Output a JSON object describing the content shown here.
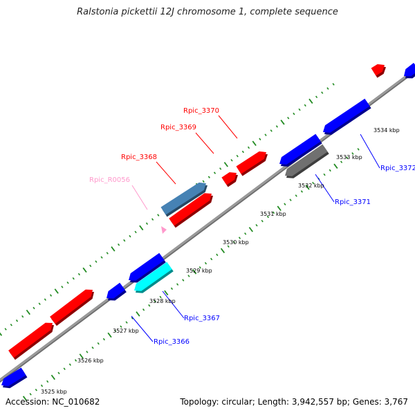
{
  "title": "Ralstonia pickettii 12J chromosome 1, complete sequence",
  "footer": {
    "accession": "Accession: NC_010682",
    "summary": "Topology: circular; Length: 3,942,557 bp; Genes: 3,767"
  },
  "colors": {
    "forward_gene": "#ff0000",
    "reverse_gene": "#0000ff",
    "rna_gene": "#4682b4",
    "pseudo_gene": "#707070",
    "cyan_gene": "#00ffff",
    "trna_marker": "#ff99cc",
    "backbone": "#9a9a9a",
    "tick": "#228b22"
  },
  "ticks": [
    {
      "label": "3525 kbp"
    },
    {
      "label": "3526 kbp"
    },
    {
      "label": "3527 kbp"
    },
    {
      "label": "3528 kbp"
    },
    {
      "label": "3529 kbp"
    },
    {
      "label": "3530 kbp"
    },
    {
      "label": "3531 kbp"
    },
    {
      "label": "3532 kbp"
    },
    {
      "label": "3533 kbp"
    },
    {
      "label": "3534 kbp"
    }
  ],
  "gene_labels": [
    {
      "name": "Rpic_3370",
      "color": "#ff0000"
    },
    {
      "name": "Rpic_3369",
      "color": "#ff0000"
    },
    {
      "name": "Rpic_3368",
      "color": "#ff0000"
    },
    {
      "name": "Rpic_R0056",
      "color": "#ff99cc"
    },
    {
      "name": "Rpic_3372",
      "color": "#0000ff"
    },
    {
      "name": "Rpic_3371",
      "color": "#0000ff"
    },
    {
      "name": "Rpic_3367",
      "color": "#0000ff"
    },
    {
      "name": "Rpic_3366",
      "color": "#0000ff"
    }
  ]
}
